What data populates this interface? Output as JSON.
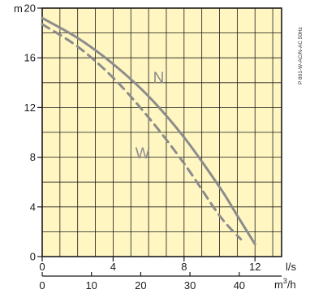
{
  "chart_data": {
    "type": "line",
    "title": "",
    "ylabel": "m",
    "xlabel": "l/s",
    "x2label": "m3/h",
    "xlim": [
      0,
      13.5
    ],
    "ylim": [
      0,
      20
    ],
    "x_ticks": [
      0,
      4,
      8,
      12
    ],
    "y_ticks": [
      0,
      4,
      8,
      12,
      16,
      20
    ],
    "x2_ticks": [
      0,
      10,
      20,
      30,
      40
    ],
    "grid": true,
    "plot_background": "#fff6c2",
    "side_note": "P 801-W-AC/N-AC 50Hz",
    "series": [
      {
        "name": "N",
        "color": "#8c8c8c",
        "dashed": false,
        "x": [
          0,
          2,
          4,
          6,
          8,
          10,
          11,
          12
        ],
        "y": [
          19.2,
          17.6,
          15.5,
          12.9,
          9.6,
          5.6,
          3.3,
          1.0
        ]
      },
      {
        "name": "W",
        "color": "#8c8c8c",
        "dashed": true,
        "x": [
          0,
          2,
          4,
          6,
          8,
          10,
          11.2
        ],
        "y": [
          18.7,
          16.9,
          14.4,
          11.2,
          7.5,
          3.3,
          1.4
        ]
      }
    ]
  }
}
